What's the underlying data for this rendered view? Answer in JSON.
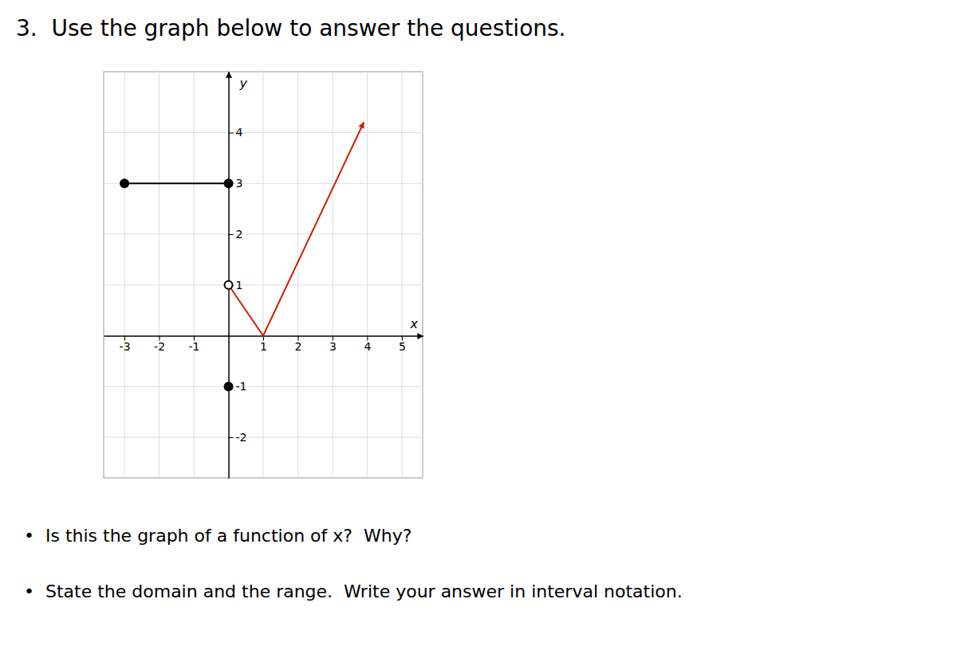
{
  "chart_data": {
    "type": "line",
    "title": "3.  Use the graph below to answer the questions.",
    "annotations": [
      "•  Is this the graph of a function of x?  Why?",
      "•  State the domain and the range.  Write your answer in interval notation."
    ],
    "xlabel": "x",
    "ylabel": "y",
    "xlim": [
      -3.6,
      5.6
    ],
    "ylim": [
      -2.8,
      5.2
    ],
    "xticks": [
      -3,
      -2,
      -1,
      1,
      2,
      3,
      4,
      5
    ],
    "yticks": [
      -2,
      -1,
      1,
      2,
      3,
      4
    ],
    "grid": true,
    "series": [
      {
        "type": "line",
        "color": "#000000",
        "marker": "circle",
        "x": [
          -3,
          0
        ],
        "values": [
          3,
          3
        ]
      },
      {
        "type": "scatter",
        "color": "#000000",
        "marker": "circle-open",
        "x": [
          0
        ],
        "values": [
          1
        ]
      },
      {
        "type": "scatter",
        "color": "#000000",
        "marker": "circle",
        "x": [
          0
        ],
        "values": [
          -1
        ]
      },
      {
        "type": "line",
        "color": "#cc2200",
        "marker": "arrow",
        "x": [
          0,
          1,
          3.9
        ],
        "values": [
          1,
          0,
          4.2
        ]
      }
    ]
  }
}
